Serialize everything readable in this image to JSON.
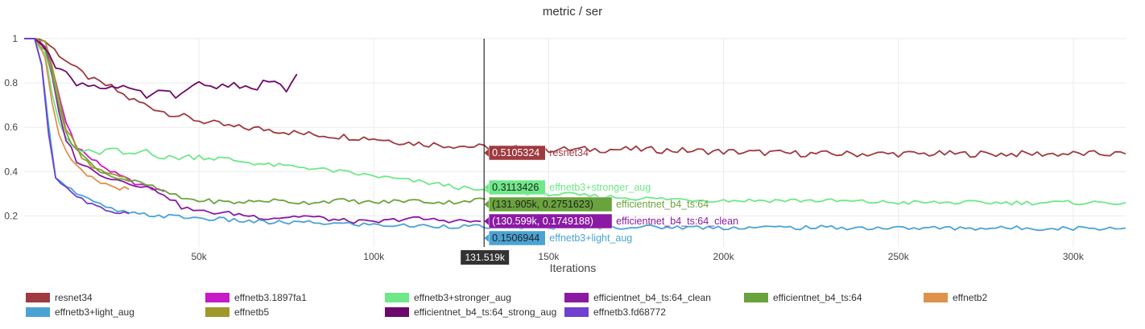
{
  "chart_data": {
    "type": "line",
    "title": "metric / ser",
    "xlabel": "Iterations",
    "ylabel": "",
    "xlim": [
      0,
      315000
    ],
    "ylim": [
      0.06,
      1.0
    ],
    "x_ticks": [
      50000,
      100000,
      150000,
      200000,
      250000,
      300000
    ],
    "x_tick_labels": [
      "50k",
      "100k",
      "150k",
      "200k",
      "250k",
      "300k"
    ],
    "y_ticks": [
      0.2,
      0.4,
      0.6,
      0.8,
      1.0
    ],
    "y_tick_labels": [
      "0.2",
      "0.4",
      "0.6",
      "0.8",
      "1"
    ],
    "grid": true,
    "legend_position": "bottom",
    "hover_x": 131519,
    "hover_x_label": "131.519k",
    "series": [
      {
        "name": "resnet34",
        "color": "#9e3a40",
        "x": [
          0,
          3000,
          6000,
          10000,
          15000,
          20000,
          25000,
          30000,
          40000,
          50000,
          60000,
          70000,
          80000,
          90000,
          100000,
          110000,
          120000,
          131519,
          150000,
          175000,
          200000,
          225000,
          250000,
          275000,
          300000,
          315000
        ],
        "y": [
          1.0,
          1.0,
          0.99,
          0.93,
          0.86,
          0.81,
          0.78,
          0.73,
          0.67,
          0.63,
          0.6,
          0.59,
          0.57,
          0.56,
          0.55,
          0.53,
          0.52,
          0.51,
          0.5,
          0.5,
          0.49,
          0.48,
          0.48,
          0.48,
          0.48,
          0.48
        ]
      },
      {
        "name": "effnetb3.1897fa1",
        "color": "#c61bc6",
        "x": [
          0,
          3000,
          6000,
          9000,
          12000,
          15000,
          18000,
          22000,
          26000,
          30000,
          35000,
          40000
        ],
        "y": [
          1.0,
          1.0,
          0.97,
          0.8,
          0.62,
          0.52,
          0.47,
          0.43,
          0.39,
          0.36,
          0.33,
          0.31
        ]
      },
      {
        "name": "effnetb3+stronger_aug",
        "color": "#6fe888",
        "x": [
          0,
          3000,
          6000,
          8000,
          10000,
          12000,
          15000,
          20000,
          25000,
          30000,
          35000,
          40000,
          50000,
          60000,
          70000,
          80000,
          90000,
          100000,
          110000,
          120000,
          131519,
          150000,
          175000,
          200000,
          225000,
          250000,
          275000,
          300000,
          315000
        ],
        "y": [
          1.0,
          1.0,
          0.92,
          0.75,
          0.62,
          0.55,
          0.5,
          0.48,
          0.5,
          0.47,
          0.5,
          0.46,
          0.47,
          0.45,
          0.43,
          0.42,
          0.4,
          0.38,
          0.36,
          0.34,
          0.31,
          0.3,
          0.28,
          0.27,
          0.27,
          0.26,
          0.26,
          0.26,
          0.26
        ]
      },
      {
        "name": "efficientnet_b4_ts:64_clean",
        "color": "#8a1aa3",
        "x": [
          0,
          3000,
          6000,
          8000,
          10000,
          12000,
          15000,
          20000,
          25000,
          30000,
          35000,
          40000,
          45000,
          50000,
          60000,
          70000,
          80000,
          90000,
          100000,
          110000,
          120000,
          130599
        ],
        "y": [
          1.0,
          1.0,
          0.95,
          0.82,
          0.66,
          0.55,
          0.45,
          0.4,
          0.37,
          0.35,
          0.33,
          0.3,
          0.24,
          0.22,
          0.21,
          0.19,
          0.2,
          0.18,
          0.17,
          0.19,
          0.18,
          0.175
        ]
      },
      {
        "name": "efficientnet_b4_ts:64",
        "color": "#6aa33d",
        "x": [
          0,
          3000,
          6000,
          8000,
          10000,
          12000,
          15000,
          20000,
          25000,
          30000,
          35000,
          40000,
          45000,
          50000,
          60000,
          70000,
          80000,
          90000,
          100000,
          110000,
          120000,
          131905
        ],
        "y": [
          1.0,
          1.0,
          0.96,
          0.85,
          0.68,
          0.58,
          0.5,
          0.42,
          0.38,
          0.36,
          0.34,
          0.31,
          0.28,
          0.27,
          0.26,
          0.27,
          0.26,
          0.27,
          0.26,
          0.27,
          0.26,
          0.2751623
        ]
      },
      {
        "name": "effnetb2",
        "color": "#e0914a",
        "x": [
          0,
          3000,
          6000,
          8000,
          10000,
          12000,
          15000,
          18000,
          22000,
          26000,
          30000
        ],
        "y": [
          1.0,
          1.0,
          0.92,
          0.72,
          0.56,
          0.48,
          0.42,
          0.38,
          0.35,
          0.33,
          0.32
        ]
      },
      {
        "name": "effnetb3+light_aug",
        "color": "#4ba3d3",
        "x": [
          0,
          3000,
          5000,
          7000,
          9000,
          12000,
          15000,
          20000,
          25000,
          30000,
          40000,
          50000,
          60000,
          70000,
          80000,
          90000,
          100000,
          110000,
          120000,
          131519,
          150000,
          175000,
          200000,
          225000,
          250000,
          275000,
          300000,
          315000
        ],
        "y": [
          1.0,
          1.0,
          0.9,
          0.6,
          0.38,
          0.34,
          0.3,
          0.26,
          0.23,
          0.21,
          0.2,
          0.19,
          0.18,
          0.17,
          0.17,
          0.165,
          0.16,
          0.155,
          0.155,
          0.1506944,
          0.15,
          0.15,
          0.148,
          0.148,
          0.145,
          0.145,
          0.145,
          0.145
        ]
      },
      {
        "name": "effnetb5",
        "color": "#a0982a",
        "x": [
          0,
          3000,
          6000,
          8000,
          10000,
          12000,
          15000,
          18000,
          22000,
          26000,
          30000
        ],
        "y": [
          1.0,
          1.0,
          0.98,
          0.88,
          0.72,
          0.6,
          0.5,
          0.44,
          0.4,
          0.38,
          0.36
        ]
      },
      {
        "name": "efficientnet_b4_ts:64_strong_aug",
        "color": "#6c0a6c",
        "x": [
          0,
          3000,
          5000,
          7000,
          9000,
          12000,
          15000,
          20000,
          25000,
          30000,
          35000,
          40000,
          45000,
          50000,
          55000,
          60000,
          65000,
          70000,
          75000,
          78000
        ],
        "y": [
          1.0,
          1.0,
          0.98,
          0.95,
          0.88,
          0.84,
          0.8,
          0.79,
          0.78,
          0.77,
          0.74,
          0.76,
          0.74,
          0.8,
          0.78,
          0.8,
          0.77,
          0.81,
          0.77,
          0.84
        ]
      },
      {
        "name": "effnetb3.fd68772",
        "color": "#7040d0",
        "x": [
          0,
          3000,
          5000,
          7000,
          9000,
          12000,
          15000,
          18000,
          22000,
          26000,
          30000
        ],
        "y": [
          1.0,
          1.0,
          0.88,
          0.58,
          0.37,
          0.33,
          0.29,
          0.26,
          0.23,
          0.22,
          0.21
        ]
      }
    ],
    "hover_labels": [
      {
        "series": "resnet34",
        "value": "0.5105324",
        "y": 0.5105324,
        "name": "resnet34"
      },
      {
        "series": "effnetb3+stronger_aug",
        "value": "0.3113426",
        "y": 0.3113426,
        "name": "effnetb3+stronger_aug"
      },
      {
        "series": "efficientnet_b4_ts:64",
        "value": "(131.905k, 0.2751623)",
        "y": 0.2751623,
        "name": "efficientnet_b4_ts:64"
      },
      {
        "series": "efficientnet_b4_ts:64_clean",
        "value": "(130.599k, 0.1749188)",
        "y": 0.1749188,
        "name": "efficientnet_b4_ts:64_clean"
      },
      {
        "series": "effnetb3+light_aug",
        "value": "0.1506944",
        "y": 0.1506944,
        "name": "effnetb3+light_aug"
      }
    ]
  },
  "legend": [
    {
      "label": "resnet34",
      "color": "#9e3a40"
    },
    {
      "label": "effnetb3.1897fa1",
      "color": "#c61bc6"
    },
    {
      "label": "effnetb3+stronger_aug",
      "color": "#6fe888"
    },
    {
      "label": "efficientnet_b4_ts:64_clean",
      "color": "#8a1aa3"
    },
    {
      "label": "efficientnet_b4_ts:64",
      "color": "#6aa33d"
    },
    {
      "label": "effnetb2",
      "color": "#e0914a"
    },
    {
      "label": "effnetb3+light_aug",
      "color": "#4ba3d3"
    },
    {
      "label": "effnetb5",
      "color": "#a0982a"
    },
    {
      "label": "efficientnet_b4_ts:64_strong_aug",
      "color": "#6c0a6c"
    },
    {
      "label": "effnetb3.fd68772",
      "color": "#7040d0"
    }
  ]
}
